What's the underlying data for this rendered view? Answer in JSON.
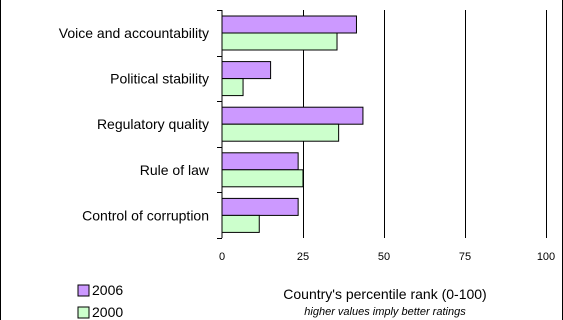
{
  "chart_data": {
    "type": "bar",
    "orientation": "horizontal",
    "categories": [
      "Voice and accountability",
      "Political stability",
      "Regulatory quality",
      "Rule of law",
      "Control of corruption"
    ],
    "series": [
      {
        "name": "2006",
        "values": [
          41.5,
          15,
          43.5,
          23.5,
          23.5
        ],
        "color": "#cc99ff"
      },
      {
        "name": "2000",
        "values": [
          35.5,
          6.5,
          36,
          25,
          11.5
        ],
        "color": "#ccffcc"
      }
    ],
    "xlim": [
      0,
      100
    ],
    "xticks": [
      0,
      25,
      50,
      75,
      100
    ],
    "xlabel": "Country's percentile rank (0-100)",
    "note": "higher values imply better ratings",
    "grid": "vertical",
    "legend_position": "bottom-left",
    "bar_outline": "#000000"
  }
}
